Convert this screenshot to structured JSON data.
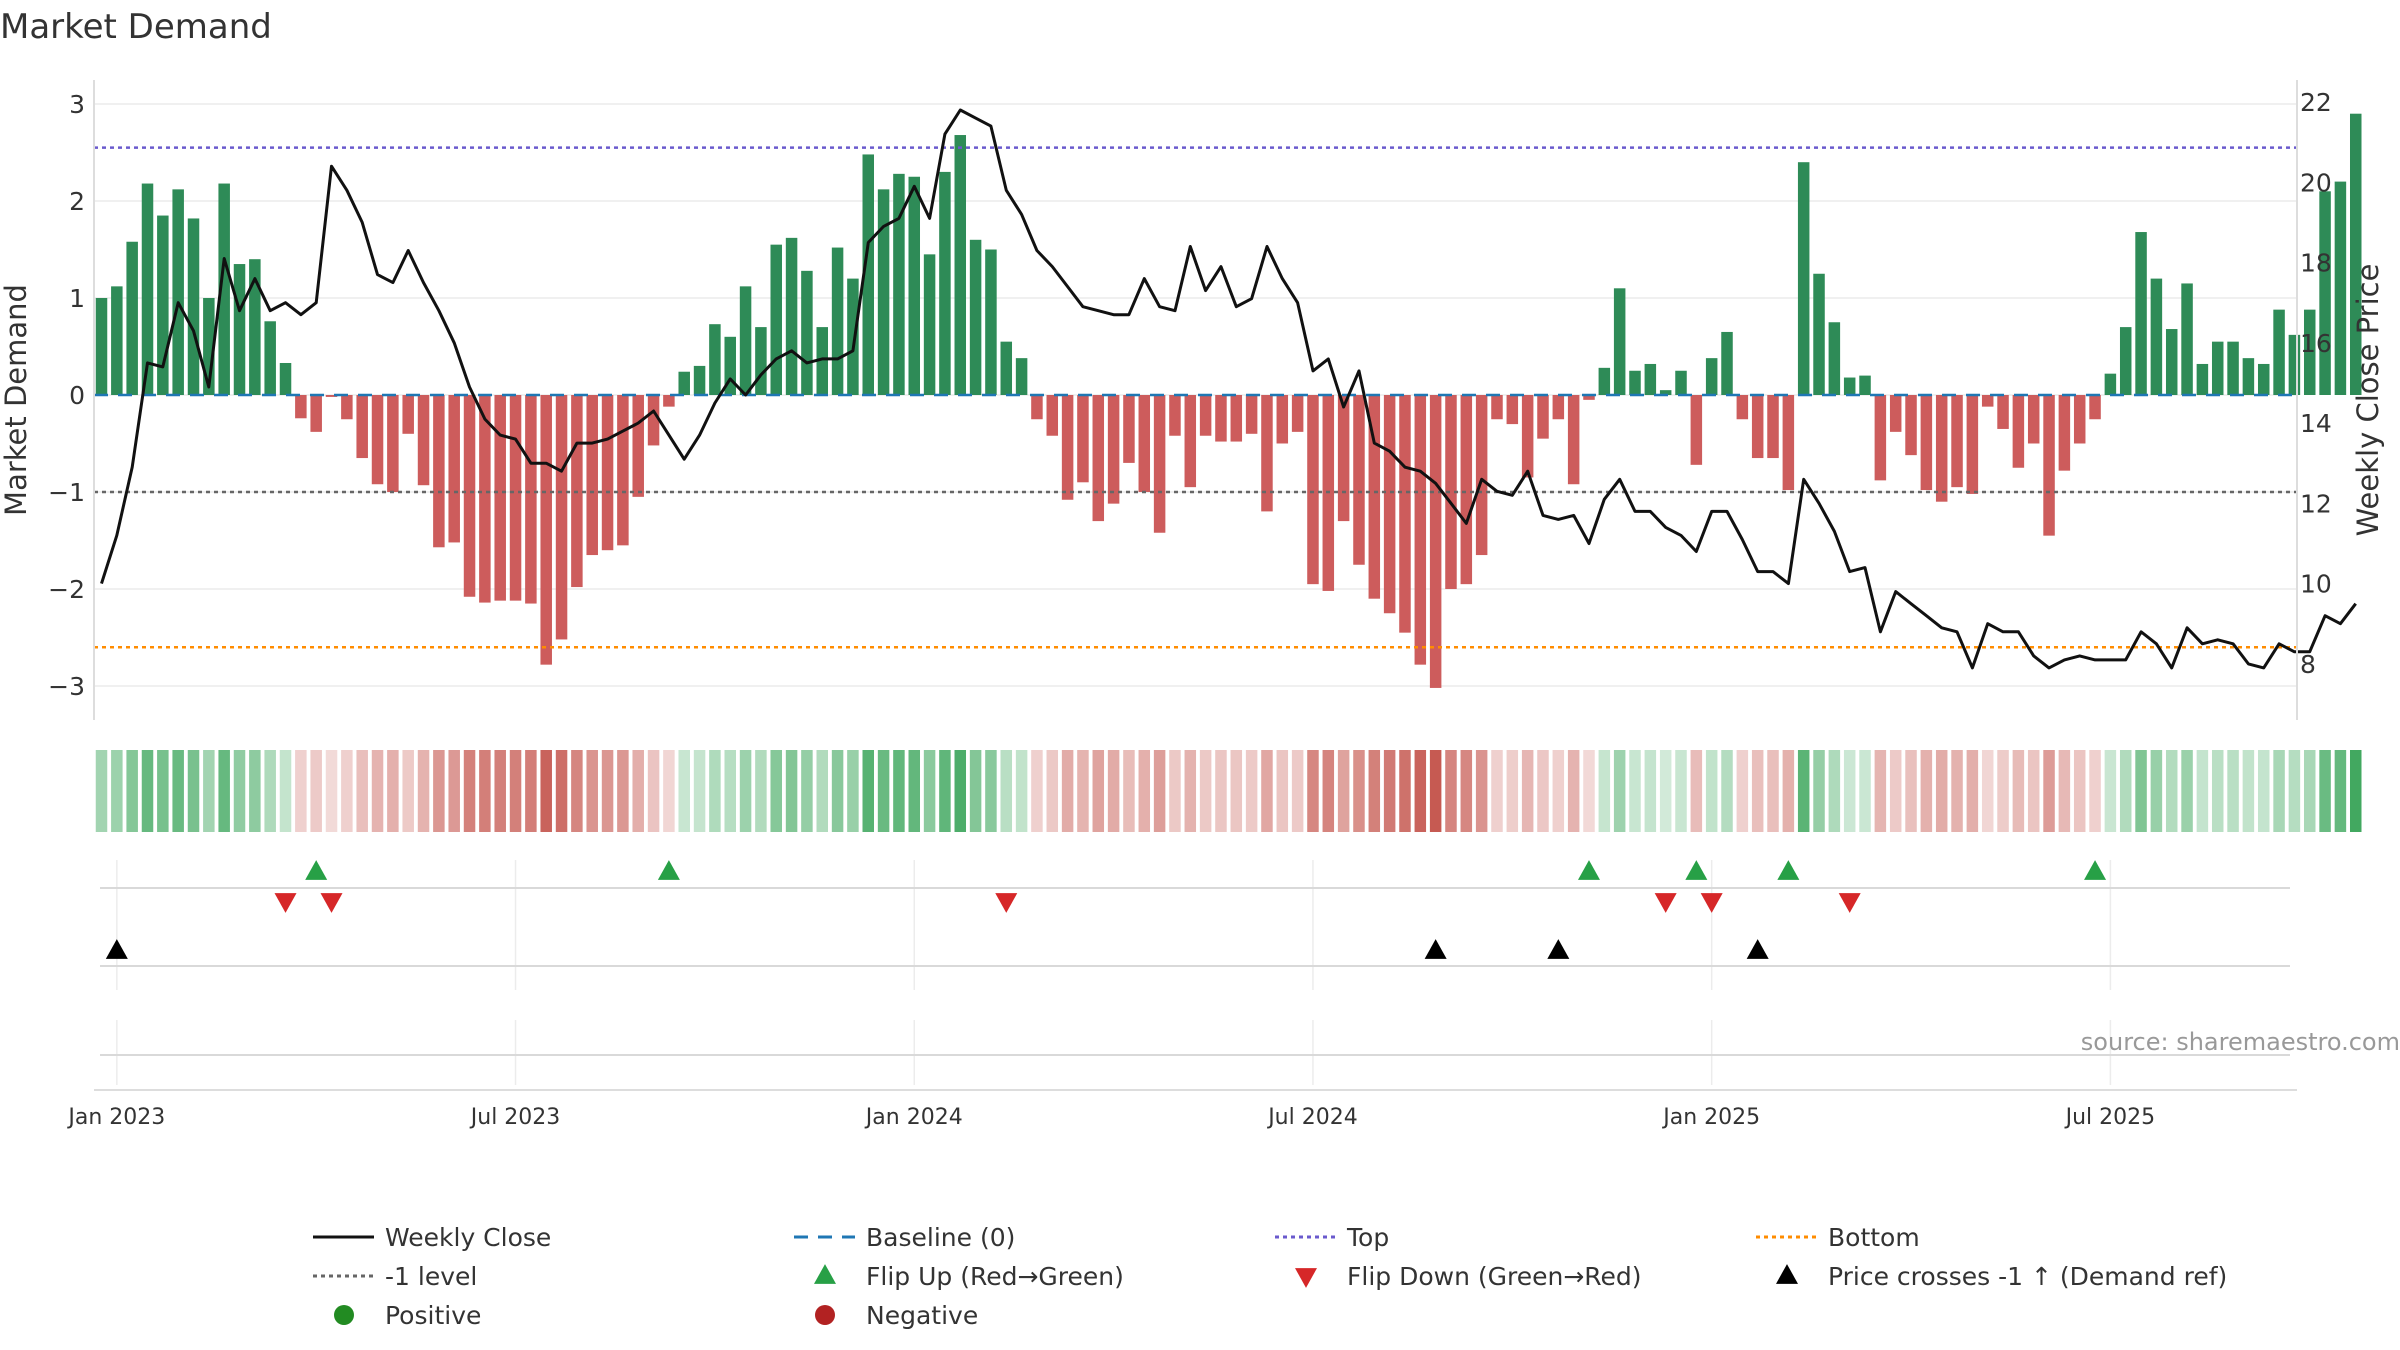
{
  "chart_data": {
    "type": "bar+line",
    "title": "Market Demand",
    "ylabel_left": "Market Demand",
    "ylabel_right": "Weekly Close Price",
    "ylim_left": [
      -3.3,
      3.2
    ],
    "ylim_right": [
      7.1,
      22.3
    ],
    "yticks_left": [
      "3",
      "2",
      "1",
      "0",
      "−1",
      "−2",
      "−3"
    ],
    "yticks_left_values": [
      3,
      2,
      1,
      0,
      -1,
      -2,
      -3
    ],
    "yticks_right": [
      "22",
      "20",
      "18",
      "16",
      "14",
      "12",
      "10",
      "8"
    ],
    "yticks_right_values": [
      22,
      20,
      18,
      16,
      14,
      12,
      10,
      8
    ],
    "xticks": [
      "Jan 2023",
      "Jul 2023",
      "Jan 2024",
      "Jul 2024",
      "Jan 2025",
      "Jul 2025"
    ],
    "xticks_week_index": [
      1,
      27,
      53,
      79,
      105,
      131
    ],
    "reference_levels": {
      "top": 2.55,
      "bottom": -2.6,
      "minus_one": -1,
      "baseline": 0
    },
    "demand": [
      1.0,
      1.12,
      1.58,
      2.18,
      1.85,
      2.12,
      1.82,
      1.0,
      2.18,
      1.35,
      1.4,
      0.76,
      0.33,
      -0.24,
      -0.38,
      -0.02,
      -0.25,
      -0.65,
      -0.92,
      -1.0,
      -0.4,
      -0.93,
      -1.57,
      -1.52,
      -2.08,
      -2.14,
      -2.12,
      -2.12,
      -2.15,
      -2.78,
      -2.52,
      -1.98,
      -1.65,
      -1.6,
      -1.55,
      -1.05,
      -0.52,
      -0.12,
      0.24,
      0.3,
      0.73,
      0.6,
      1.12,
      0.7,
      1.55,
      1.62,
      1.28,
      0.7,
      1.52,
      1.2,
      2.48,
      2.12,
      2.28,
      2.25,
      1.45,
      2.3,
      2.68,
      1.6,
      1.5,
      0.55,
      0.38,
      -0.25,
      -0.42,
      -1.08,
      -0.9,
      -1.3,
      -1.12,
      -0.7,
      -1.0,
      -1.42,
      -0.42,
      -0.95,
      -0.42,
      -0.48,
      -0.48,
      -0.4,
      -1.2,
      -0.5,
      -0.38,
      -1.95,
      -2.02,
      -1.3,
      -1.75,
      -2.1,
      -2.25,
      -2.45,
      -2.78,
      -3.02,
      -2.0,
      -1.95,
      -1.65,
      -0.25,
      -0.3,
      -0.85,
      -0.45,
      -0.25,
      -0.92,
      -0.05,
      0.28,
      1.1,
      0.25,
      0.32,
      0.05,
      0.25,
      -0.72,
      0.38,
      0.65,
      -0.25,
      -0.65,
      -0.65,
      -0.98,
      2.4,
      1.25,
      0.75,
      0.18,
      0.2,
      -0.88,
      -0.38,
      -0.62,
      -0.98,
      -1.1,
      -0.95,
      -1.02,
      -0.12,
      -0.35,
      -0.75,
      -0.5,
      -1.45,
      -0.78,
      -0.5,
      -0.25,
      0.22,
      0.7,
      1.68,
      1.2,
      0.68,
      1.15,
      0.32,
      0.55,
      0.55,
      0.38,
      0.32,
      0.88,
      0.62,
      0.88,
      2.1,
      2.2,
      2.9
    ],
    "weekly_close": [
      10.0,
      11.2,
      12.9,
      15.5,
      15.4,
      17.0,
      16.3,
      14.9,
      18.1,
      16.8,
      17.6,
      16.8,
      17.0,
      16.7,
      17.0,
      20.4,
      19.8,
      19.0,
      17.7,
      17.5,
      18.3,
      17.5,
      16.8,
      16.0,
      14.9,
      14.1,
      13.7,
      13.6,
      13.0,
      13.0,
      12.8,
      13.5,
      13.5,
      13.6,
      13.8,
      14.0,
      14.3,
      13.7,
      13.1,
      13.7,
      14.5,
      15.1,
      14.7,
      15.2,
      15.6,
      15.8,
      15.5,
      15.6,
      15.6,
      15.8,
      18.5,
      18.9,
      19.1,
      19.9,
      19.1,
      21.2,
      21.8,
      21.6,
      21.4,
      19.8,
      19.2,
      18.3,
      17.9,
      17.4,
      16.9,
      16.8,
      16.7,
      16.7,
      17.6,
      16.9,
      16.8,
      18.4,
      17.3,
      17.9,
      16.9,
      17.1,
      18.4,
      17.6,
      17.0,
      15.3,
      15.6,
      14.4,
      15.3,
      13.5,
      13.3,
      12.9,
      12.8,
      12.5,
      12.0,
      11.5,
      12.6,
      12.3,
      12.2,
      12.8,
      11.7,
      11.6,
      11.7,
      11.0,
      12.1,
      12.6,
      11.8,
      11.8,
      11.4,
      11.2,
      10.8,
      11.8,
      11.8,
      11.1,
      10.3,
      10.3,
      10.0,
      12.6,
      12.0,
      11.3,
      10.3,
      10.4,
      8.8,
      9.8,
      9.5,
      9.2,
      8.9,
      8.8,
      7.9,
      9.0,
      8.8,
      8.8,
      8.2,
      7.9,
      8.1,
      8.2,
      8.1,
      8.1,
      8.1,
      8.8,
      8.5,
      7.9,
      8.9,
      8.5,
      8.6,
      8.5,
      8.0,
      7.9,
      8.5,
      8.3,
      8.3,
      9.2,
      9.0,
      9.5
    ],
    "flip_up_weeks": [
      14,
      37,
      97,
      104,
      110,
      130
    ],
    "flip_down_weeks": [
      12,
      15,
      59,
      102,
      105,
      114
    ],
    "price_cross_weeks": [
      1,
      87,
      95,
      108
    ],
    "source": "source: sharemaestro.com",
    "legend": [
      {
        "label": "Weekly Close",
        "marker": "line-black"
      },
      {
        "label": "Baseline (0)",
        "marker": "dash-blue"
      },
      {
        "label": "Top",
        "marker": "dot-purple"
      },
      {
        "label": "Bottom",
        "marker": "dot-orange"
      },
      {
        "label": "-1 level",
        "marker": "dot-gray"
      },
      {
        "label": "Flip Up (Red→Green)",
        "marker": "triangle-up-green"
      },
      {
        "label": "Flip Down (Green→Red)",
        "marker": "triangle-down-red"
      },
      {
        "label": "Price crosses -1 ↑ (Demand ref)",
        "marker": "triangle-up-black"
      },
      {
        "label": "Positive",
        "marker": "circle-green"
      },
      {
        "label": "Negative",
        "marker": "circle-red"
      }
    ],
    "colors": {
      "positive": "#2e8b57",
      "negative": "#cd5c5c",
      "line": "#111111",
      "top": "#6a5acd",
      "bottom": "#ff8c00",
      "minus_one": "#666666",
      "baseline": "#1f77b4",
      "flip_up": "#27a046",
      "flip_down": "#d62728",
      "price_cross": "#000000",
      "legend_positive": "#228b22",
      "legend_negative": "#b22222"
    }
  }
}
